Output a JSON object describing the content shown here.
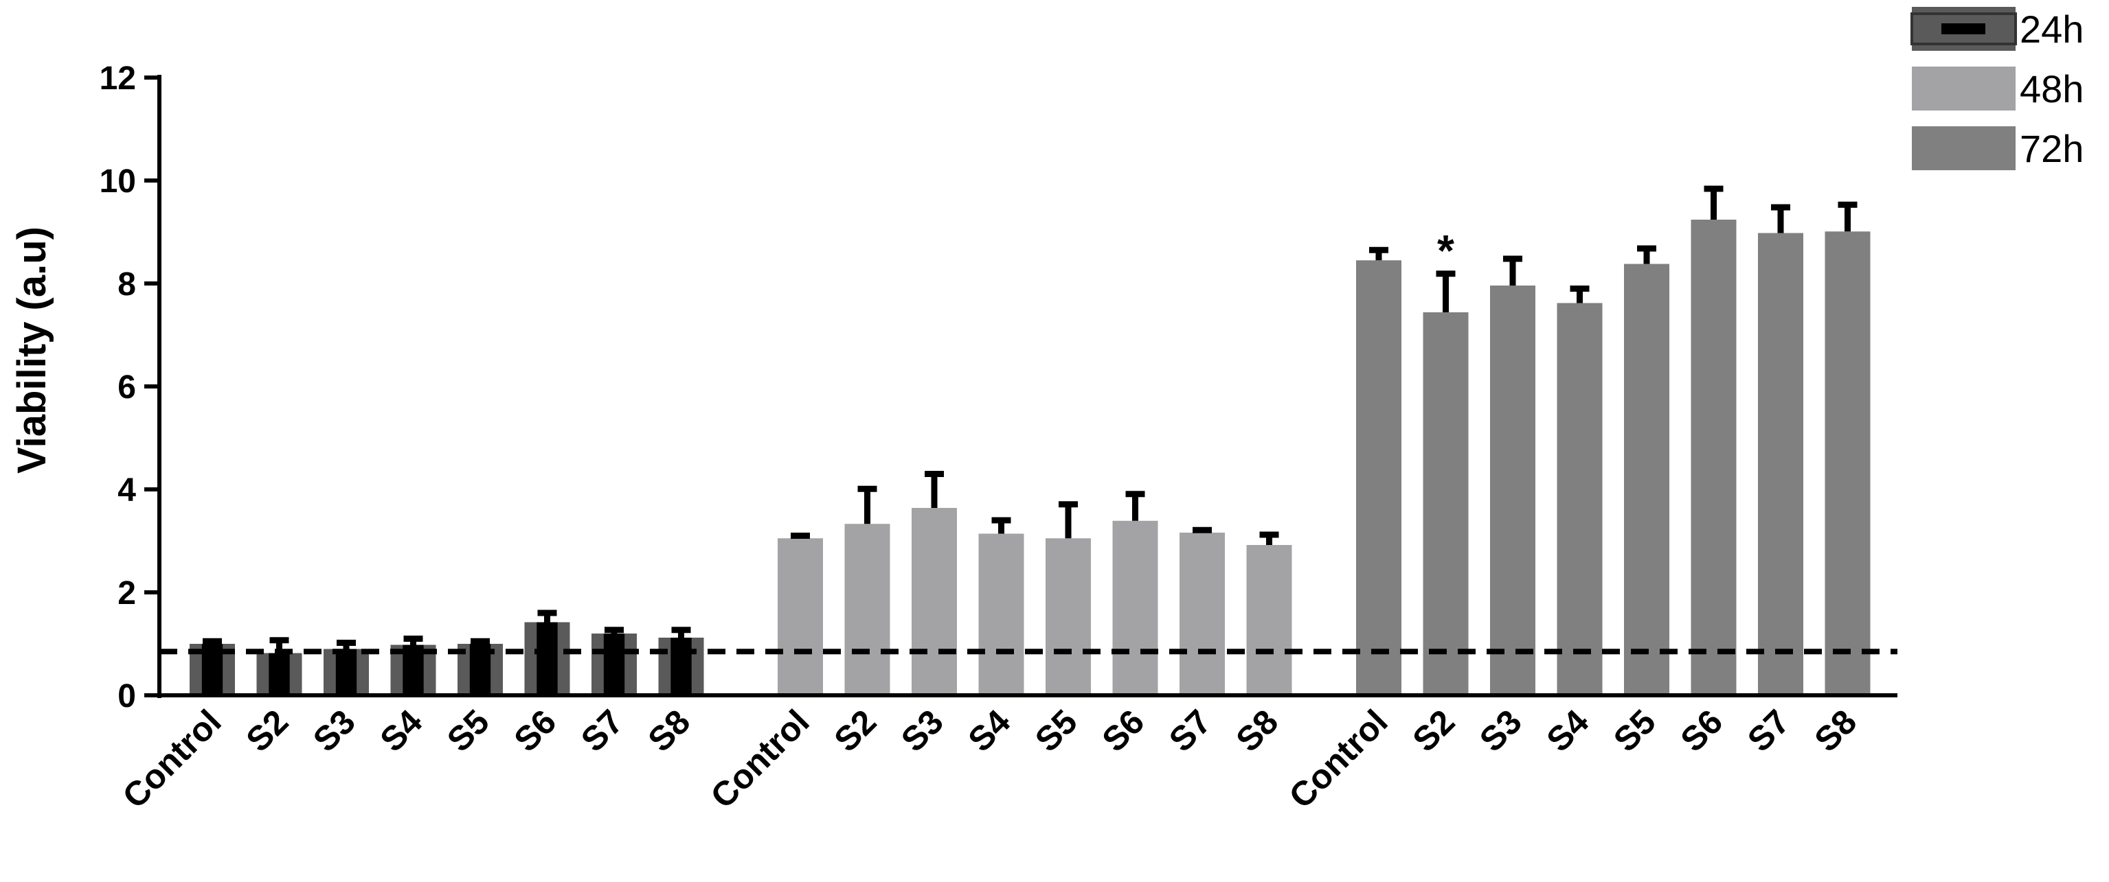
{
  "chart_data": {
    "type": "bar",
    "ylabel": "Viability (a.u)",
    "ylim": [
      0,
      12
    ],
    "yticks": [
      "0",
      "2",
      "4",
      "6",
      "8",
      "10",
      "12"
    ],
    "categories": [
      "Control",
      "S2",
      "S3",
      "S4",
      "S5",
      "S6",
      "S7",
      "S8"
    ],
    "series": [
      {
        "name": "24h",
        "color": "#5a5a5a",
        "inner_color": "#000000",
        "values": [
          1.0,
          0.82,
          0.9,
          0.98,
          1.0,
          1.42,
          1.2,
          1.12
        ],
        "errors": [
          0.05,
          0.25,
          0.12,
          0.12,
          0.05,
          0.18,
          0.07,
          0.15
        ]
      },
      {
        "name": "48h",
        "color": "#a3a3a6",
        "values": [
          3.05,
          3.33,
          3.64,
          3.14,
          3.05,
          3.39,
          3.16,
          2.92
        ],
        "errors": [
          0.05,
          0.68,
          0.66,
          0.26,
          0.66,
          0.52,
          0.05,
          0.2
        ]
      },
      {
        "name": "72h",
        "color": "#808080",
        "values": [
          8.45,
          7.44,
          7.96,
          7.62,
          8.38,
          9.24,
          8.98,
          9.01
        ],
        "errors": [
          0.2,
          0.75,
          0.52,
          0.28,
          0.3,
          0.6,
          0.5,
          0.52
        ]
      }
    ],
    "reference_line": {
      "y": 0.85,
      "style": "dashed"
    },
    "annotations": [
      {
        "series": "72h",
        "category": "S2",
        "text": "*"
      }
    ],
    "legend": {
      "placement": "top-right",
      "entries": [
        "24h",
        "48h",
        "72h"
      ]
    },
    "grid": false
  }
}
